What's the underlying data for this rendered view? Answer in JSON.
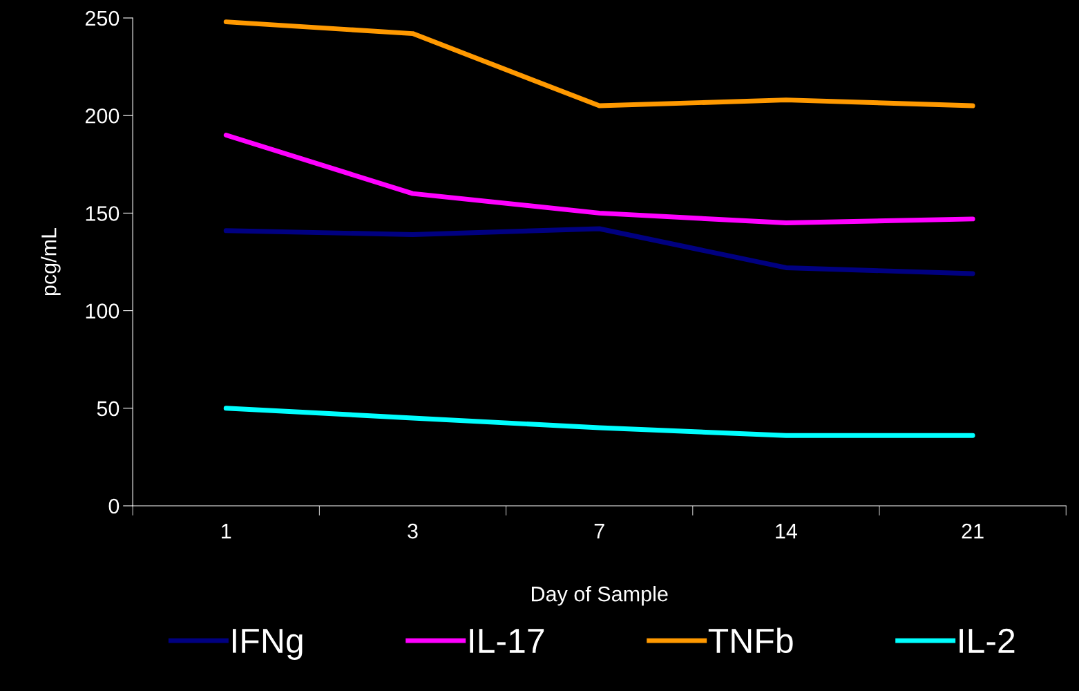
{
  "chart_data": {
    "type": "line",
    "xlabel": "Day of Sample",
    "ylabel": "pcg/mL",
    "categories": [
      "1",
      "3",
      "7",
      "14",
      "21"
    ],
    "series": [
      {
        "name": "IFNg",
        "color": "#000080",
        "values": [
          141,
          139,
          142,
          122,
          119
        ]
      },
      {
        "name": "IL-17",
        "color": "#ff00ff",
        "values": [
          190,
          160,
          150,
          145,
          147
        ]
      },
      {
        "name": "TNFb",
        "color": "#ff9900",
        "values": [
          248,
          242,
          205,
          208,
          205
        ]
      },
      {
        "name": "IL-2",
        "color": "#00ffff",
        "values": [
          50,
          45,
          40,
          36,
          36
        ]
      }
    ],
    "ylim": [
      0,
      250
    ],
    "yticks": [
      0,
      50,
      100,
      150,
      200,
      250
    ],
    "grid": false,
    "legend": "bottom",
    "marker": "none",
    "line_style": "solid"
  }
}
